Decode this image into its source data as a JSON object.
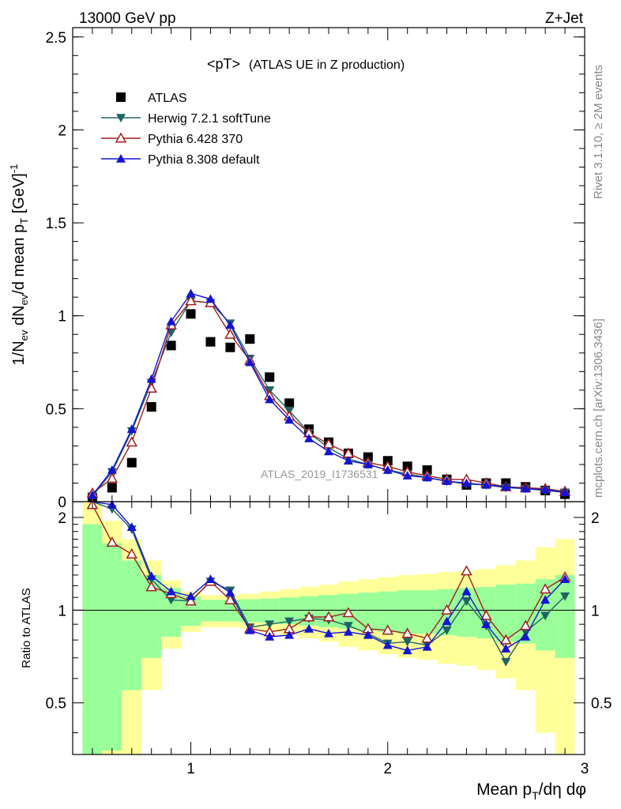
{
  "header": {
    "left_label": "13000 GeV pp",
    "right_label": "Z+Jet"
  },
  "side_labels": {
    "rivet": "Rivet 3.1.10, ≥ 2M events",
    "mcplots": "mcplots.cern.ch [arXiv:1306.3436]"
  },
  "watermark": "ATLAS_2019_I1736531",
  "chart_data": [
    {
      "type": "scatter",
      "panel": "main",
      "title": "<pT> (ATLAS UE in Z production)",
      "title_main": "<pT>",
      "title_sub": "(ATLAS UE in Z production)",
      "ylabel": "1/N_ev dN_ev/d mean p_T [GeV]^-1",
      "ylim": [
        0,
        2.55
      ],
      "xlim": [
        0.4,
        3.0
      ],
      "yticks": [
        0,
        0.5,
        1,
        1.5,
        2,
        2.5
      ],
      "ytick_labels": [
        "0",
        "0.5",
        "1",
        "1.5",
        "2",
        "2.5"
      ],
      "x": [
        0.5,
        0.6,
        0.7,
        0.8,
        0.9,
        1.0,
        1.1,
        1.2,
        1.3,
        1.4,
        1.5,
        1.6,
        1.7,
        1.8,
        1.9,
        2.0,
        2.1,
        2.2,
        2.3,
        2.4,
        2.5,
        2.6,
        2.7,
        2.8,
        2.9
      ],
      "legend_position": "top-left",
      "series": [
        {
          "name": "ATLAS",
          "marker": "square",
          "color": "#000000",
          "values": [
            0.02,
            0.075,
            0.21,
            0.51,
            0.84,
            1.01,
            0.86,
            0.83,
            0.875,
            0.67,
            0.53,
            0.39,
            0.32,
            0.26,
            0.24,
            0.22,
            0.19,
            0.17,
            0.12,
            0.09,
            0.1,
            0.1,
            0.08,
            0.06,
            0.04
          ]
        },
        {
          "name": "Herwig 7.2.1 softTune",
          "marker": "triangle-down",
          "color": "#1e6464",
          "values": [
            0.03,
            0.16,
            0.38,
            0.64,
            0.91,
            1.08,
            1.07,
            0.96,
            0.77,
            0.6,
            0.49,
            0.37,
            0.29,
            0.23,
            0.2,
            0.17,
            0.15,
            0.13,
            0.11,
            0.095,
            0.09,
            0.075,
            0.07,
            0.06,
            0.05
          ]
        },
        {
          "name": "Pythia 6.428 370",
          "marker": "triangle-up-open",
          "color": "#a01e1e",
          "values": [
            0.045,
            0.125,
            0.32,
            0.61,
            0.95,
            1.08,
            1.07,
            0.9,
            0.76,
            0.57,
            0.46,
            0.37,
            0.31,
            0.26,
            0.21,
            0.19,
            0.16,
            0.14,
            0.12,
            0.12,
            0.1,
            0.08,
            0.075,
            0.07,
            0.055
          ]
        },
        {
          "name": "Pythia 8.308 default",
          "marker": "triangle-up",
          "color": "#1414d2",
          "values": [
            0.035,
            0.17,
            0.39,
            0.66,
            0.97,
            1.12,
            1.09,
            0.95,
            0.75,
            0.55,
            0.44,
            0.34,
            0.27,
            0.22,
            0.2,
            0.17,
            0.14,
            0.13,
            0.11,
            0.1,
            0.09,
            0.08,
            0.07,
            0.065,
            0.05
          ]
        }
      ]
    },
    {
      "type": "line",
      "panel": "ratio",
      "ylabel": "Ratio to ATLAS",
      "xlabel": "Mean p_T/dη dφ",
      "xlabel_main": "Mean p",
      "xlabel_sub": "T",
      "xlabel_tail": "/dη dφ",
      "ylim": [
        0.34,
        2.25
      ],
      "xlim": [
        0.4,
        3.0
      ],
      "yticks": [
        0.5,
        1,
        2
      ],
      "ytick_labels": [
        "0.5",
        "1",
        "2"
      ],
      "xticks": [
        1,
        2,
        3
      ],
      "xtick_labels": [
        "1",
        "2",
        "3"
      ],
      "x": [
        0.5,
        0.6,
        0.7,
        0.8,
        0.9,
        1.0,
        1.1,
        1.2,
        1.3,
        1.4,
        1.5,
        1.6,
        1.7,
        1.8,
        1.9,
        2.0,
        2.1,
        2.2,
        2.3,
        2.4,
        2.5,
        2.6,
        2.7,
        2.8,
        2.9
      ],
      "band_green_half_width": [
        0.9,
        0.65,
        0.45,
        0.3,
        0.18,
        0.11,
        0.08,
        0.08,
        0.085,
        0.09,
        0.1,
        0.11,
        0.12,
        0.13,
        0.14,
        0.15,
        0.16,
        0.16,
        0.17,
        0.18,
        0.19,
        0.21,
        0.22,
        0.26,
        0.3
      ],
      "band_yellow_half_width": [
        1.3,
        0.95,
        0.7,
        0.45,
        0.25,
        0.15,
        0.12,
        0.12,
        0.13,
        0.15,
        0.17,
        0.19,
        0.21,
        0.24,
        0.26,
        0.28,
        0.3,
        0.31,
        0.33,
        0.34,
        0.36,
        0.4,
        0.45,
        0.6,
        0.7
      ],
      "series": [
        {
          "name": "Herwig 7.2.1 softTune",
          "marker": "triangle-down",
          "color": "#1e6464",
          "values": [
            2.4,
            2.13,
            1.83,
            1.26,
            1.08,
            1.07,
            1.24,
            1.16,
            0.88,
            0.9,
            0.92,
            0.94,
            0.93,
            0.89,
            0.84,
            0.78,
            0.79,
            0.77,
            0.86,
            1.07,
            0.89,
            0.68,
            0.85,
            0.96,
            1.11
          ]
        },
        {
          "name": "Pythia 6.428 370",
          "marker": "triangle-up-open",
          "color": "#a01e1e",
          "values": [
            2.2,
            1.66,
            1.52,
            1.19,
            1.13,
            1.07,
            1.24,
            1.08,
            0.87,
            0.85,
            0.87,
            0.95,
            0.95,
            0.98,
            0.87,
            0.86,
            0.84,
            0.81,
            1.0,
            1.34,
            0.96,
            0.8,
            0.89,
            1.17,
            1.28
          ]
        },
        {
          "name": "Pythia 8.308 default",
          "marker": "triangle-up",
          "color": "#1414d2",
          "values": [
            2.5,
            2.2,
            1.86,
            1.29,
            1.15,
            1.11,
            1.26,
            1.14,
            0.86,
            0.82,
            0.83,
            0.87,
            0.84,
            0.85,
            0.83,
            0.77,
            0.74,
            0.76,
            0.92,
            1.15,
            0.9,
            0.75,
            0.82,
            1.08,
            1.26
          ]
        }
      ]
    }
  ]
}
